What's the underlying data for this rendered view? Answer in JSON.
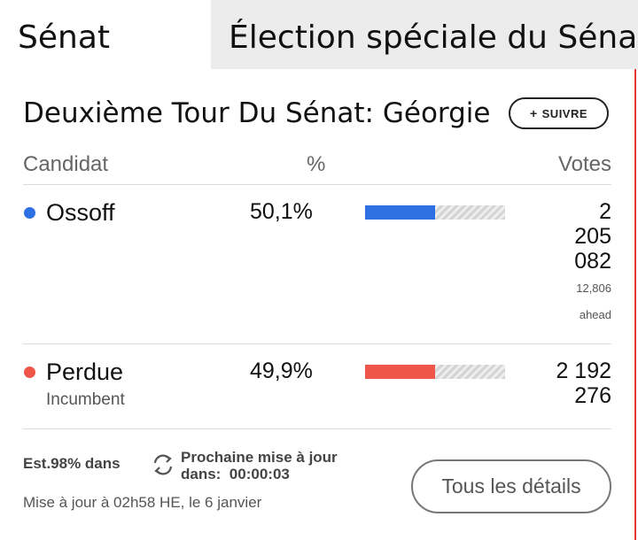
{
  "tabs": {
    "senate": "Sénat",
    "special": "Élection spéciale du Sénat"
  },
  "race": {
    "title": "Deuxième Tour Du Sénat: Géorgie",
    "follow_label": "SUIVRE",
    "follow_icon": "plus-icon"
  },
  "columns": {
    "candidate": "Candidat",
    "percent": "%",
    "votes": "Votes"
  },
  "candidates": [
    {
      "name": "Ossoff",
      "subtitle": "",
      "percent": "50,1%",
      "percent_value": 50.1,
      "votes_lines": [
        "2",
        "205",
        "082"
      ],
      "lead_margin": "12,806",
      "lead_label": "ahead",
      "color": "#2f6fe4"
    },
    {
      "name": "Perdue",
      "subtitle": "Incumbent",
      "percent": "49,9%",
      "percent_value": 49.9,
      "votes_lines": [
        "2 192",
        "276"
      ],
      "color": "#ef5548"
    }
  ],
  "footer": {
    "reporting": "Est.98% dans",
    "refresh_icon": "refresh-icon",
    "next_update_label": "Prochaine mise à jour",
    "next_update_prefix": "dans:",
    "countdown": "00:00:03",
    "updated": "Mise à jour à 02h58 HE, le 6 janvier",
    "details_button": "Tous les détails"
  },
  "colors": {
    "accent_edge": "#e53935",
    "tab_inactive_bg": "#ececec"
  }
}
